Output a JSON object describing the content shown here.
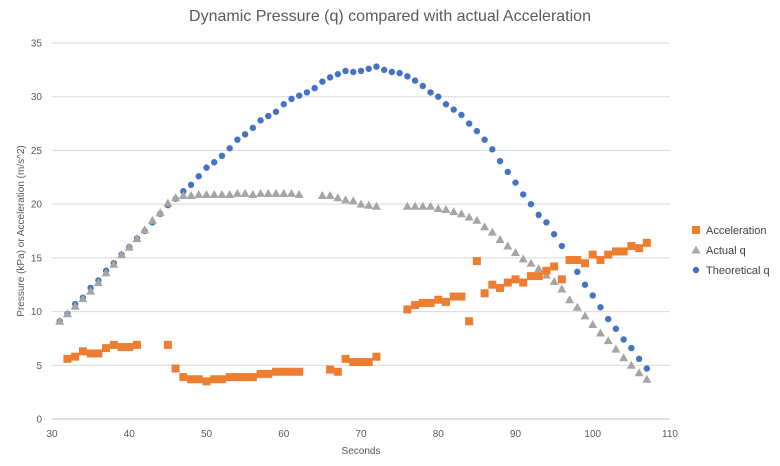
{
  "chart_data": {
    "type": "scatter",
    "title": "Dynamic Pressure (q) compared with actual Acceleration",
    "xlabel": "Seconds",
    "ylabel": "Pressure (kPa) or Acceleration (m/s^2)",
    "xlim": [
      30,
      110
    ],
    "ylim": [
      0,
      35
    ],
    "x_ticks": [
      30,
      40,
      50,
      60,
      70,
      80,
      90,
      100,
      110
    ],
    "y_ticks": [
      0,
      5,
      10,
      15,
      20,
      25,
      30,
      35
    ],
    "grid": "horizontal",
    "legend_position": "right",
    "series": [
      {
        "name": "Acceleration",
        "marker": "square",
        "color": "#ED7D31",
        "points": [
          [
            32,
            5.6
          ],
          [
            33,
            5.8
          ],
          [
            34,
            6.3
          ],
          [
            35,
            6.1
          ],
          [
            36,
            6.1
          ],
          [
            37,
            6.6
          ],
          [
            38,
            6.9
          ],
          [
            39,
            6.7
          ],
          [
            40,
            6.7
          ],
          [
            41,
            6.9
          ],
          [
            45,
            6.9
          ],
          [
            46,
            4.7
          ],
          [
            47,
            3.9
          ],
          [
            48,
            3.7
          ],
          [
            49,
            3.7
          ],
          [
            50,
            3.5
          ],
          [
            51,
            3.7
          ],
          [
            52,
            3.7
          ],
          [
            53,
            3.9
          ],
          [
            54,
            3.9
          ],
          [
            55,
            3.9
          ],
          [
            56,
            3.9
          ],
          [
            57,
            4.2
          ],
          [
            58,
            4.2
          ],
          [
            59,
            4.4
          ],
          [
            60,
            4.4
          ],
          [
            61,
            4.4
          ],
          [
            62,
            4.4
          ],
          [
            66,
            4.6
          ],
          [
            67,
            4.4
          ],
          [
            68,
            5.6
          ],
          [
            69,
            5.3
          ],
          [
            70,
            5.3
          ],
          [
            71,
            5.3
          ],
          [
            72,
            5.8
          ],
          [
            76,
            10.2
          ],
          [
            77,
            10.6
          ],
          [
            78,
            10.8
          ],
          [
            79,
            10.8
          ],
          [
            80,
            11.1
          ],
          [
            81,
            10.9
          ],
          [
            82,
            11.4
          ],
          [
            83,
            11.4
          ],
          [
            84,
            9.1
          ],
          [
            85,
            14.7
          ],
          [
            86,
            11.7
          ],
          [
            87,
            12.5
          ],
          [
            88,
            12.2
          ],
          [
            89,
            12.7
          ],
          [
            90,
            13.0
          ],
          [
            91,
            12.7
          ],
          [
            92,
            13.3
          ],
          [
            93,
            13.3
          ],
          [
            94,
            13.8
          ],
          [
            95,
            14.2
          ],
          [
            96,
            13.0
          ],
          [
            97,
            14.8
          ],
          [
            98,
            14.8
          ],
          [
            99,
            14.5
          ],
          [
            100,
            15.3
          ],
          [
            101,
            14.8
          ],
          [
            102,
            15.3
          ],
          [
            103,
            15.6
          ],
          [
            104,
            15.6
          ],
          [
            105,
            16.1
          ],
          [
            106,
            15.9
          ],
          [
            107,
            16.4
          ]
        ]
      },
      {
        "name": "Actual q",
        "marker": "triangle",
        "color": "#A5A5A5",
        "points": [
          [
            31,
            9.1
          ],
          [
            32,
            9.8
          ],
          [
            33,
            10.5
          ],
          [
            34,
            11.2
          ],
          [
            35,
            11.9
          ],
          [
            36,
            12.7
          ],
          [
            37,
            13.6
          ],
          [
            38,
            14.4
          ],
          [
            39,
            15.3
          ],
          [
            40,
            16.0
          ],
          [
            41,
            16.8
          ],
          [
            42,
            17.6
          ],
          [
            43,
            18.5
          ],
          [
            44,
            19.2
          ],
          [
            45,
            20.1
          ],
          [
            46,
            20.6
          ],
          [
            47,
            20.8
          ],
          [
            48,
            20.8
          ],
          [
            49,
            20.9
          ],
          [
            50,
            20.9
          ],
          [
            51,
            20.9
          ],
          [
            52,
            20.9
          ],
          [
            53,
            20.9
          ],
          [
            54,
            21.0
          ],
          [
            55,
            21.0
          ],
          [
            56,
            20.9
          ],
          [
            57,
            21.0
          ],
          [
            58,
            21.0
          ],
          [
            59,
            21.0
          ],
          [
            60,
            21.0
          ],
          [
            61,
            21.0
          ],
          [
            62,
            20.9
          ],
          [
            65,
            20.8
          ],
          [
            66,
            20.8
          ],
          [
            67,
            20.6
          ],
          [
            68,
            20.4
          ],
          [
            69,
            20.3
          ],
          [
            70,
            20.0
          ],
          [
            71,
            19.9
          ],
          [
            72,
            19.8
          ],
          [
            76,
            19.8
          ],
          [
            77,
            19.8
          ],
          [
            78,
            19.8
          ],
          [
            79,
            19.8
          ],
          [
            80,
            19.6
          ],
          [
            81,
            19.5
          ],
          [
            82,
            19.3
          ],
          [
            83,
            19.1
          ],
          [
            84,
            18.8
          ],
          [
            85,
            18.5
          ],
          [
            86,
            17.9
          ],
          [
            87,
            17.4
          ],
          [
            88,
            16.7
          ],
          [
            89,
            16.1
          ],
          [
            90,
            15.5
          ],
          [
            91,
            14.9
          ],
          [
            92,
            14.5
          ],
          [
            93,
            14.0
          ],
          [
            94,
            13.4
          ],
          [
            95,
            12.8
          ],
          [
            96,
            12.1
          ],
          [
            97,
            11.1
          ],
          [
            98,
            10.4
          ],
          [
            99,
            9.6
          ],
          [
            100,
            8.8
          ],
          [
            101,
            8.0
          ],
          [
            102,
            7.3
          ],
          [
            103,
            6.5
          ],
          [
            104,
            5.7
          ],
          [
            105,
            5.0
          ],
          [
            106,
            4.3
          ],
          [
            107,
            3.7
          ]
        ]
      },
      {
        "name": "Theoretical q",
        "marker": "circle",
        "color": "#4472C4",
        "points": [
          [
            31,
            9.1
          ],
          [
            32,
            9.8
          ],
          [
            33,
            10.7
          ],
          [
            34,
            11.3
          ],
          [
            35,
            12.2
          ],
          [
            36,
            12.9
          ],
          [
            37,
            13.8
          ],
          [
            38,
            14.5
          ],
          [
            39,
            15.3
          ],
          [
            40,
            16.0
          ],
          [
            41,
            16.8
          ],
          [
            42,
            17.5
          ],
          [
            43,
            18.3
          ],
          [
            44,
            19.1
          ],
          [
            45,
            19.9
          ],
          [
            46,
            20.5
          ],
          [
            47,
            21.2
          ],
          [
            48,
            21.8
          ],
          [
            49,
            22.6
          ],
          [
            50,
            23.4
          ],
          [
            51,
            23.9
          ],
          [
            52,
            24.5
          ],
          [
            53,
            25.2
          ],
          [
            54,
            26.0
          ],
          [
            55,
            26.5
          ],
          [
            56,
            27.1
          ],
          [
            57,
            27.8
          ],
          [
            58,
            28.2
          ],
          [
            59,
            28.6
          ],
          [
            60,
            29.3
          ],
          [
            61,
            29.8
          ],
          [
            62,
            30.1
          ],
          [
            63,
            30.4
          ],
          [
            64,
            30.8
          ],
          [
            65,
            31.4
          ],
          [
            66,
            31.8
          ],
          [
            67,
            32.1
          ],
          [
            68,
            32.4
          ],
          [
            69,
            32.3
          ],
          [
            70,
            32.4
          ],
          [
            71,
            32.6
          ],
          [
            72,
            32.8
          ],
          [
            73,
            32.5
          ],
          [
            74,
            32.3
          ],
          [
            75,
            32.2
          ],
          [
            76,
            31.9
          ],
          [
            77,
            31.5
          ],
          [
            78,
            31.0
          ],
          [
            79,
            30.4
          ],
          [
            80,
            30.0
          ],
          [
            81,
            29.3
          ],
          [
            82,
            28.8
          ],
          [
            83,
            28.3
          ],
          [
            84,
            27.5
          ],
          [
            85,
            26.8
          ],
          [
            86,
            26.0
          ],
          [
            87,
            25.1
          ],
          [
            88,
            24.0
          ],
          [
            89,
            23.0
          ],
          [
            90,
            22.0
          ],
          [
            91,
            20.9
          ],
          [
            92,
            20.0
          ],
          [
            93,
            19.0
          ],
          [
            94,
            18.3
          ],
          [
            95,
            17.2
          ],
          [
            96,
            16.1
          ],
          [
            97,
            14.8
          ],
          [
            98,
            13.7
          ],
          [
            99,
            12.5
          ],
          [
            100,
            11.5
          ],
          [
            101,
            10.4
          ],
          [
            102,
            9.3
          ],
          [
            103,
            8.4
          ],
          [
            104,
            7.4
          ],
          [
            105,
            6.6
          ],
          [
            106,
            5.6
          ],
          [
            107,
            4.7
          ]
        ]
      }
    ]
  }
}
